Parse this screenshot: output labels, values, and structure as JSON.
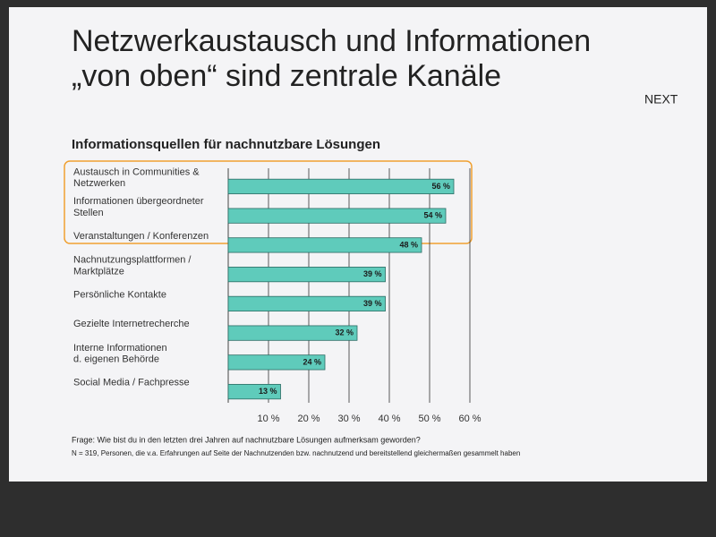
{
  "chart_data": {
    "type": "bar",
    "orientation": "horizontal",
    "title": "Netzwerkaustausch und Informationen\n„von oben“ sind zentrale Kanäle",
    "subtitle": "Informationsquellen für nachnutzbare Lösungen",
    "logo": "NEXT",
    "categories": [
      "Austausch in Communities &\nNetzwerken",
      "Informationen übergeordneter\nStellen",
      "Veranstaltungen / Konferenzen",
      "Nachnutzungsplattformen /\nMarktplätze",
      "Persönliche Kontakte",
      "Gezielte Internetrecherche",
      "Interne Informationen\nd. eigenen Behörde",
      "Social Media / Fachpresse"
    ],
    "values": [
      56,
      54,
      48,
      39,
      39,
      32,
      24,
      13
    ],
    "value_labels": [
      "56 %",
      "54 %",
      "48 %",
      "39 %",
      "39 %",
      "32 %",
      "24 %",
      "13 %"
    ],
    "color": "#5fcbbb",
    "xlim": [
      0,
      60
    ],
    "xticks": [
      {
        "value": 10,
        "label": "10 %"
      },
      {
        "value": 20,
        "label": "20 %"
      },
      {
        "value": 30,
        "label": "30 %"
      },
      {
        "value": 40,
        "label": "40 %"
      },
      {
        "value": 50,
        "label": "50 %"
      },
      {
        "value": 60,
        "label": "60 %"
      }
    ],
    "grid": true,
    "notes": [
      "Frage: Wie bist du in den letzten drei Jahren auf nachnutzbare Lösungen aufmerksam geworden?",
      "N = 319, Personen, die v.a. Erfahrungen auf Seite der Nachnutzenden bzw. nachnutzend und bereitstellend gleichermaßen gesammelt haben"
    ]
  }
}
